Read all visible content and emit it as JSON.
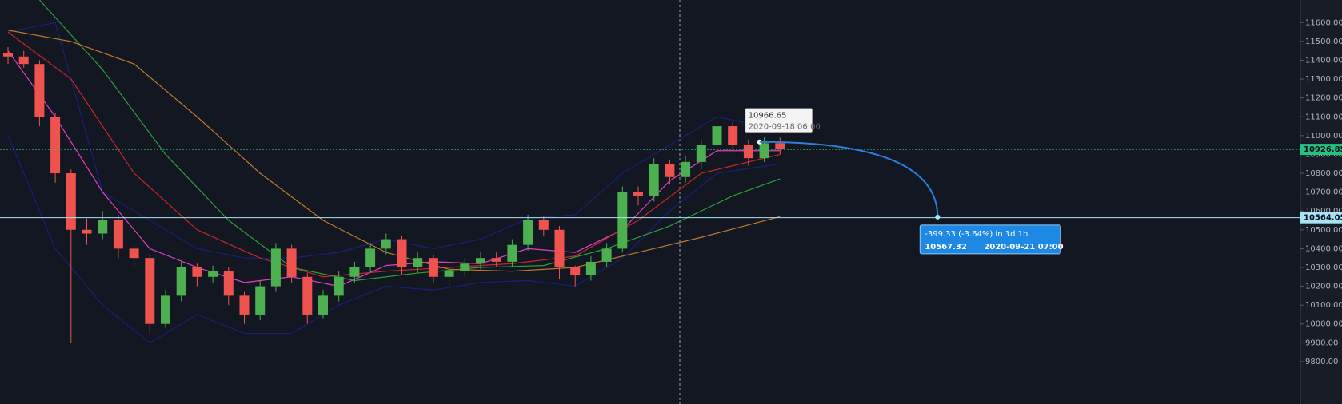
{
  "chart_data": {
    "type": "candlestick",
    "open": [
      11440,
      11420,
      11380,
      11100,
      10800,
      10500,
      10480,
      10550,
      10400,
      10350,
      10000,
      10150,
      10300,
      10250,
      10280,
      10150,
      10050,
      10200,
      10400,
      10250,
      10050,
      10150,
      10250,
      10300,
      10400,
      10450,
      10300,
      10350,
      10250,
      10280,
      10320,
      10350,
      10330,
      10420,
      10550,
      10500,
      10300,
      10260,
      10330,
      10400,
      10700,
      10680,
      10850,
      10780,
      10860,
      10950,
      11050,
      10950,
      10880,
      10960
    ],
    "high": [
      11470,
      11450,
      11400,
      11120,
      10820,
      10560,
      10600,
      10580,
      10430,
      10370,
      10180,
      10330,
      10320,
      10310,
      10300,
      10170,
      10230,
      10430,
      10420,
      10270,
      10180,
      10280,
      10330,
      10430,
      10480,
      10470,
      10380,
      10370,
      10300,
      10350,
      10380,
      10380,
      10450,
      10580,
      10570,
      10520,
      10310,
      10360,
      10430,
      10730,
      10730,
      10880,
      10870,
      10890,
      10980,
      11080,
      11070,
      10980,
      10990,
      10990
    ],
    "low": [
      11380,
      11360,
      11050,
      10750,
      9900,
      10420,
      10450,
      10350,
      10300,
      9950,
      9980,
      10120,
      10200,
      10220,
      10100,
      10000,
      10020,
      10170,
      10220,
      10000,
      10030,
      10120,
      10220,
      10270,
      10370,
      10260,
      10270,
      10220,
      10200,
      10250,
      10290,
      10300,
      10300,
      10390,
      10470,
      10240,
      10200,
      10230,
      10300,
      10380,
      10630,
      10650,
      10740,
      10750,
      10820,
      10930,
      10920,
      10840,
      10860,
      10900
    ],
    "close": [
      11420,
      11380,
      11100,
      10800,
      10500,
      10480,
      10550,
      10400,
      10350,
      10000,
      10150,
      10300,
      10250,
      10280,
      10150,
      10050,
      10200,
      10400,
      10250,
      10050,
      10150,
      10250,
      10300,
      10400,
      10450,
      10300,
      10350,
      10250,
      10280,
      10320,
      10350,
      10330,
      10420,
      10550,
      10500,
      10300,
      10260,
      10330,
      10400,
      10700,
      10680,
      10850,
      10780,
      10860,
      10950,
      11050,
      10950,
      10880,
      10960,
      10926.85
    ],
    "up_color": "#4caf50",
    "down_color": "#ef5350",
    "overlays": [
      {
        "color": "#1a1f7a",
        "x": [
          0,
          3,
          6,
          9,
          12,
          15,
          18,
          21,
          24,
          27,
          30,
          33,
          36,
          39,
          42,
          45,
          49
        ],
        "values": [
          11550,
          11600,
          10700,
          10550,
          10400,
          10350,
          10350,
          10380,
          10450,
          10400,
          10450,
          10560,
          10580,
          10800,
          10950,
          11100,
          11030
        ]
      },
      {
        "color": "#1a1f7a",
        "x": [
          0,
          3,
          6,
          9,
          12,
          15,
          18,
          21,
          24,
          27,
          30,
          33,
          36,
          39,
          42,
          45,
          49
        ],
        "values": [
          11000,
          10400,
          10100,
          9900,
          10050,
          9950,
          9950,
          10100,
          10200,
          10180,
          10220,
          10230,
          10200,
          10350,
          10600,
          10800,
          10850
        ]
      },
      {
        "color": "#e040c0",
        "x": [
          0,
          3,
          6,
          9,
          12,
          15,
          18,
          21,
          24,
          27,
          30,
          33,
          36,
          39,
          42,
          45,
          49
        ],
        "values": [
          11450,
          11100,
          10700,
          10400,
          10300,
          10220,
          10250,
          10200,
          10310,
          10330,
          10320,
          10400,
          10380,
          10500,
          10760,
          10920,
          10920
        ]
      },
      {
        "color": "#c62828",
        "x": [
          0,
          4,
          8,
          12,
          16,
          20,
          24,
          28,
          32,
          36,
          40,
          44,
          49
        ],
        "values": [
          11550,
          11300,
          10800,
          10500,
          10350,
          10250,
          10280,
          10300,
          10320,
          10360,
          10550,
          10800,
          10900
        ]
      },
      {
        "color": "#2e9e3a",
        "x": [
          2,
          6,
          10,
          14,
          18,
          22,
          26,
          30,
          34,
          38,
          42,
          46,
          49
        ],
        "values": [
          11720,
          11350,
          10900,
          10550,
          10300,
          10230,
          10270,
          10300,
          10310,
          10400,
          10520,
          10680,
          10770
        ]
      },
      {
        "color": "#c27a2c",
        "x": [
          0,
          4,
          8,
          12,
          16,
          20,
          24,
          28,
          32,
          36,
          40,
          44,
          49
        ],
        "values": [
          11560,
          11500,
          11380,
          11100,
          10800,
          10550,
          10380,
          10290,
          10280,
          10300,
          10380,
          10460,
          10570
        ]
      }
    ],
    "ylim": [
      9575,
      11720
    ],
    "yticks": [
      {
        "value": 9800,
        "label": "9800.00"
      },
      {
        "value": 9900,
        "label": "9900.00"
      },
      {
        "value": 10000,
        "label": "10000.00"
      },
      {
        "value": 10100,
        "label": "10100.00"
      },
      {
        "value": 10200,
        "label": "10200.00"
      },
      {
        "value": 10300,
        "label": "10300.00"
      },
      {
        "value": 10400,
        "label": "10400.00"
      },
      {
        "value": 10500,
        "label": "10500.00"
      },
      {
        "value": 10600,
        "label": "10600.00"
      },
      {
        "value": 10700,
        "label": "10700.00"
      },
      {
        "value": 10800,
        "label": "10800.00"
      },
      {
        "value": 10900,
        "label": "10900.00"
      },
      {
        "value": 11000,
        "label": "11000.00"
      },
      {
        "value": 11100,
        "label": "11100.00"
      },
      {
        "value": 11200,
        "label": "11200.00"
      },
      {
        "value": 11300,
        "label": "11300.00"
      },
      {
        "value": 11400,
        "label": "11400.00"
      },
      {
        "value": 11500,
        "label": "11500.00"
      },
      {
        "value": 11600,
        "label": "11600.00"
      }
    ],
    "price_lines": [
      {
        "value": 10926.85,
        "color": "#26c281"
      },
      {
        "value": 10564.05,
        "color": "#a9e4f5"
      }
    ],
    "callout": {
      "value": 10966.65,
      "date": "2020-09-18 06:00"
    },
    "measure": {
      "change": "-399.33 (-3.64%) in 3d 1h",
      "target": 10567.32,
      "date": "2020-09-21  07:00"
    }
  }
}
